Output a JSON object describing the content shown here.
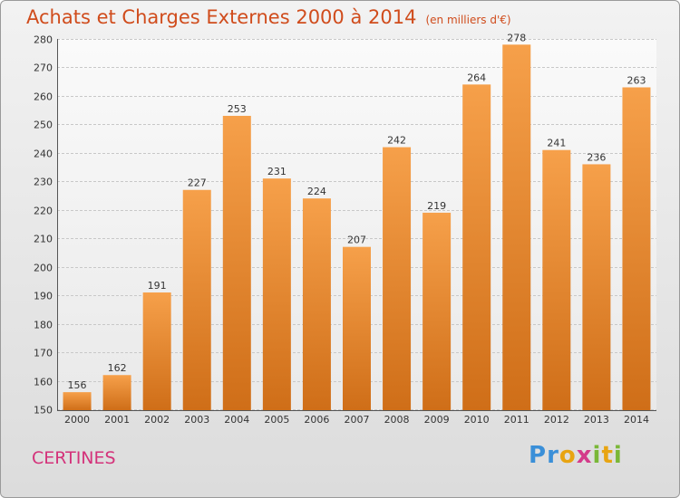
{
  "header": {
    "title": "Achats et Charges Externes 2000 à 2014",
    "unit": "(en milliers d'€)"
  },
  "footer": {
    "place": "CERTINES",
    "logo": "Proxiti"
  },
  "colors": {
    "bar_top": "#f6a04a",
    "bar_bottom": "#cf6e18",
    "title": "#d04c1c",
    "place": "#d4327a"
  },
  "chart_data": {
    "type": "bar",
    "title": "Achats et Charges Externes 2000 à 2014",
    "subtitle": "(en milliers d'€)",
    "categories": [
      "2000",
      "2001",
      "2002",
      "2003",
      "2004",
      "2005",
      "2006",
      "2007",
      "2008",
      "2009",
      "2010",
      "2011",
      "2012",
      "2013",
      "2014"
    ],
    "values": [
      156,
      162,
      191,
      227,
      253,
      231,
      224,
      207,
      242,
      219,
      264,
      278,
      241,
      236,
      263
    ],
    "ylim": [
      150,
      280
    ],
    "yticks": [
      150,
      160,
      170,
      180,
      190,
      200,
      210,
      220,
      230,
      240,
      250,
      260,
      270,
      280
    ],
    "grid": true,
    "data_labels": true
  }
}
